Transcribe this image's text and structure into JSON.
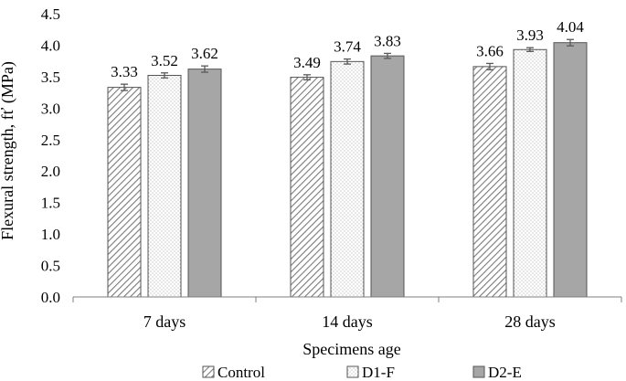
{
  "chart_data": {
    "type": "bar",
    "title": "",
    "xlabel": "Specimens age",
    "ylabel": "Flexural strength, fť (MPa)",
    "ylim": [
      0,
      4.5
    ],
    "ytick_step": 0.5,
    "ytick_labels": [
      "0.0",
      "0.5",
      "1.0",
      "1.5",
      "2.0",
      "2.5",
      "3.0",
      "3.5",
      "4.0",
      "4.5"
    ],
    "grid": false,
    "legend_position": "bottom",
    "categories": [
      "7 days",
      "14 days",
      "28 days"
    ],
    "series": [
      {
        "name": "Control",
        "pattern": "diagonal-hatch",
        "values": [
          3.33,
          3.49,
          3.66
        ],
        "errors": [
          0.05,
          0.04,
          0.05
        ],
        "labels": [
          "3.33",
          "3.49",
          "3.66"
        ]
      },
      {
        "name": "D1-F",
        "pattern": "dots",
        "values": [
          3.52,
          3.74,
          3.93
        ],
        "errors": [
          0.04,
          0.04,
          0.03
        ],
        "labels": [
          "3.52",
          "3.74",
          "3.93"
        ]
      },
      {
        "name": "D2-E",
        "pattern": "solid-gray",
        "values": [
          3.62,
          3.83,
          4.04
        ],
        "errors": [
          0.05,
          0.04,
          0.05
        ],
        "labels": [
          "3.62",
          "3.83",
          "4.04"
        ]
      }
    ],
    "colors": {
      "solid": "#a6a6a6",
      "stroke": "#555555",
      "axis": "#7f7f7f"
    }
  }
}
